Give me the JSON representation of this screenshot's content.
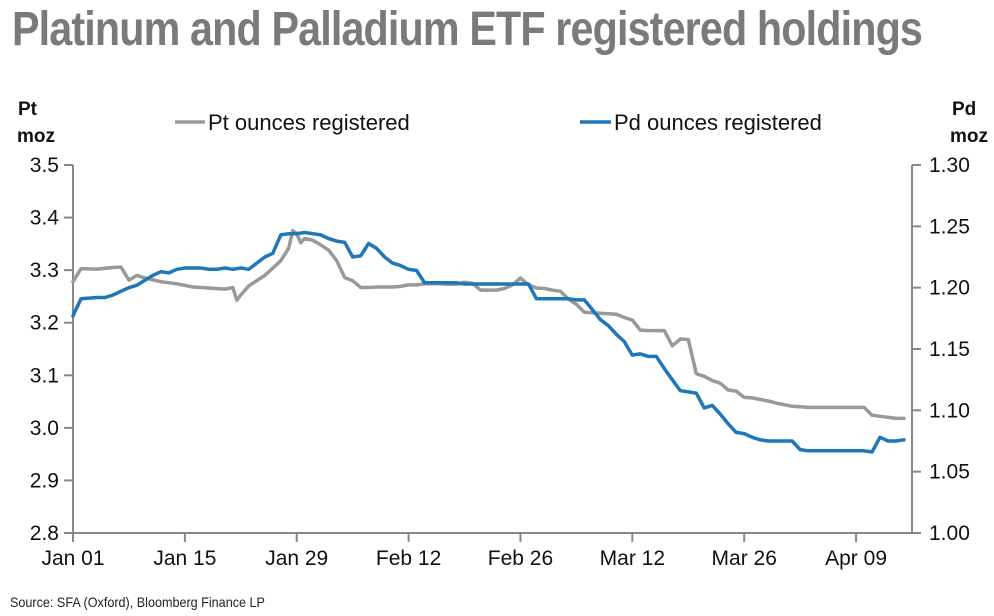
{
  "chart_data": {
    "type": "line",
    "title": "Platinum and Palladium ETF registered holdings",
    "source": "Source: SFA (Oxford), Bloomberg Finance LP",
    "x_tick_labels": [
      "Jan 01",
      "Jan 15",
      "Jan 29",
      "Feb 12",
      "Feb 26",
      "Mar 12",
      "Mar 26",
      "Apr 09"
    ],
    "x_tick_days": [
      0,
      14,
      28,
      42,
      56,
      70,
      84,
      98
    ],
    "xlim_days": [
      0,
      105
    ],
    "left_axis": {
      "label_top": "Pt",
      "label_bottom": "moz",
      "ylim": [
        2.8,
        3.5
      ],
      "ticks": [
        "2.8",
        "2.9",
        "3.0",
        "3.1",
        "3.2",
        "3.3",
        "3.4",
        "3.5"
      ]
    },
    "right_axis": {
      "label_top": "Pd",
      "label_bottom": "moz",
      "ylim": [
        1.0,
        1.3
      ],
      "ticks": [
        "1.00",
        "1.05",
        "1.10",
        "1.15",
        "1.20",
        "1.25",
        "1.30"
      ]
    },
    "grid": false,
    "legend": "top",
    "series": [
      {
        "name": "Pt ounces registered",
        "axis": "left",
        "color": "#999999",
        "x": [
          0,
          1,
          3,
          5,
          6,
          7,
          8,
          9,
          11,
          13,
          15,
          17,
          19,
          20,
          20.5,
          21,
          22,
          24,
          26,
          27,
          27.5,
          28,
          28.5,
          29,
          30,
          31,
          32,
          33,
          34,
          35,
          36,
          37,
          38,
          39,
          40,
          41,
          42,
          43,
          44,
          45,
          46,
          47,
          48,
          49,
          50,
          51,
          52,
          53,
          54,
          55,
          56,
          57,
          58,
          59,
          60,
          61,
          62,
          63,
          64,
          65,
          66,
          67,
          68,
          69,
          70,
          71,
          72,
          73,
          74,
          75,
          76,
          77,
          78,
          79,
          80,
          81,
          82,
          83,
          84,
          85,
          86,
          87,
          88,
          89,
          90,
          91,
          92,
          93,
          94,
          95,
          96,
          97,
          98,
          99,
          100,
          101,
          102,
          103,
          104
        ],
        "y": [
          3.278,
          3.303,
          3.302,
          3.305,
          3.306,
          3.281,
          3.29,
          3.285,
          3.278,
          3.274,
          3.268,
          3.266,
          3.264,
          3.267,
          3.243,
          3.253,
          3.27,
          3.29,
          3.318,
          3.342,
          3.375,
          3.37,
          3.352,
          3.36,
          3.357,
          3.348,
          3.338,
          3.318,
          3.286,
          3.28,
          3.267,
          3.267,
          3.268,
          3.268,
          3.268,
          3.269,
          3.272,
          3.272,
          3.274,
          3.274,
          3.274,
          3.273,
          3.273,
          3.277,
          3.275,
          3.262,
          3.262,
          3.262,
          3.265,
          3.272,
          3.285,
          3.272,
          3.266,
          3.265,
          3.262,
          3.26,
          3.245,
          3.235,
          3.22,
          3.219,
          3.218,
          3.217,
          3.216,
          3.21,
          3.205,
          3.186,
          3.185,
          3.185,
          3.185,
          3.156,
          3.169,
          3.168,
          3.103,
          3.098,
          3.09,
          3.085,
          3.072,
          3.07,
          3.058,
          3.057,
          3.054,
          3.051,
          3.047,
          3.044,
          3.041,
          3.04,
          3.039,
          3.039,
          3.039,
          3.039,
          3.039,
          3.039,
          3.039,
          3.039,
          3.024,
          3.022,
          3.02,
          3.018,
          3.018
        ]
      },
      {
        "name": "Pd ounces registered",
        "axis": "right",
        "color": "#1f77b8",
        "x": [
          0,
          1,
          3,
          4,
          5,
          6,
          7,
          8,
          9,
          10,
          11,
          12,
          13,
          14,
          15,
          16,
          17,
          18,
          19,
          20,
          21,
          22,
          23,
          24,
          25,
          26,
          27,
          28,
          29,
          30,
          31,
          32,
          33,
          34,
          35,
          36,
          37,
          38,
          39,
          40,
          41,
          42,
          43,
          44,
          45,
          46,
          47,
          48,
          49,
          50,
          51,
          52,
          53,
          54,
          55,
          56,
          57,
          58,
          59,
          60,
          61,
          62,
          63,
          64,
          65,
          66,
          67,
          68,
          69,
          70,
          71,
          72,
          73,
          74,
          75,
          76,
          77,
          78,
          79,
          80,
          81,
          82,
          83,
          84,
          85,
          86,
          87,
          88,
          89,
          90,
          91,
          92,
          93,
          94,
          95,
          96,
          97,
          98,
          99,
          100,
          101,
          102,
          103,
          104
        ],
        "y": [
          1.177,
          1.191,
          1.192,
          1.192,
          1.194,
          1.197,
          1.2,
          1.202,
          1.206,
          1.21,
          1.213,
          1.212,
          1.215,
          1.216,
          1.216,
          1.216,
          1.215,
          1.215,
          1.216,
          1.215,
          1.216,
          1.215,
          1.22,
          1.225,
          1.228,
          1.243,
          1.244,
          1.244,
          1.245,
          1.244,
          1.243,
          1.24,
          1.238,
          1.237,
          1.225,
          1.226,
          1.236,
          1.232,
          1.225,
          1.22,
          1.218,
          1.215,
          1.214,
          1.204,
          1.204,
          1.204,
          1.204,
          1.204,
          1.203,
          1.203,
          1.203,
          1.203,
          1.203,
          1.203,
          1.203,
          1.203,
          1.203,
          1.191,
          1.191,
          1.191,
          1.191,
          1.191,
          1.19,
          1.19,
          1.182,
          1.174,
          1.169,
          1.162,
          1.156,
          1.145,
          1.146,
          1.144,
          1.144,
          1.134,
          1.125,
          1.116,
          1.115,
          1.114,
          1.102,
          1.104,
          1.097,
          1.089,
          1.082,
          1.081,
          1.078,
          1.076,
          1.075,
          1.075,
          1.075,
          1.075,
          1.068,
          1.067,
          1.067,
          1.067,
          1.067,
          1.067,
          1.067,
          1.067,
          1.067,
          1.066,
          1.078,
          1.075,
          1.075,
          1.076
        ]
      }
    ]
  }
}
